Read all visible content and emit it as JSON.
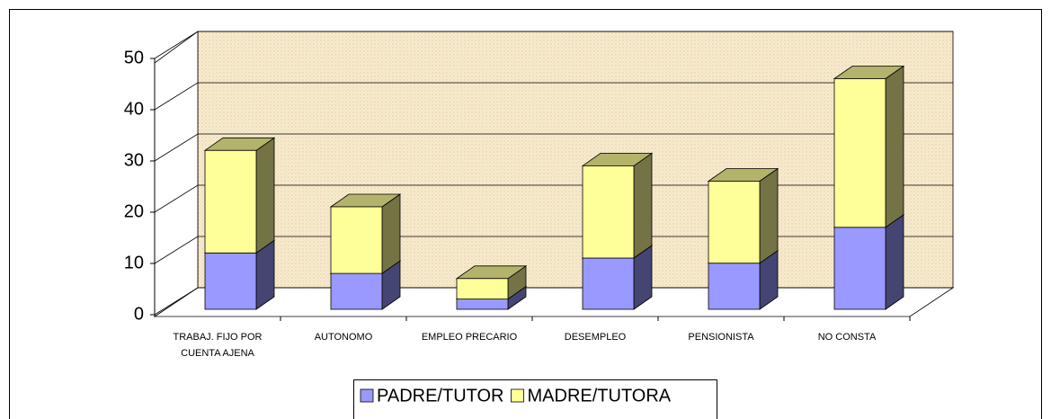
{
  "chart_data": {
    "type": "bar",
    "stacked": true,
    "categories": [
      "TRABAJ. FIJO POR CUENTA AJENA",
      "AUTONOMO",
      "EMPLEO PRECARIO",
      "DESEMPLEO",
      "PENSIONISTA",
      "NO CONSTA"
    ],
    "series": [
      {
        "name": "PADRE/TUTOR",
        "color": "#9999ff",
        "values": [
          11,
          7,
          2,
          10,
          9,
          16
        ]
      },
      {
        "name": "MADRE/TUTORA",
        "color": "#ffff99",
        "values": [
          20,
          13,
          4,
          18,
          16,
          29
        ]
      }
    ],
    "ylim": [
      0,
      50
    ],
    "yticks": [
      0,
      10,
      20,
      30,
      40,
      50
    ],
    "grid": true,
    "legend": "bottom"
  }
}
